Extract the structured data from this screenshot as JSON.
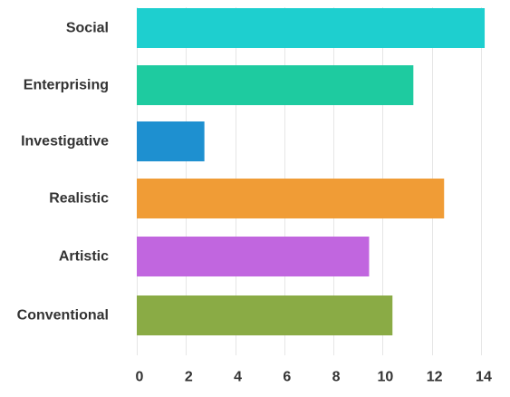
{
  "chart_data": {
    "type": "bar",
    "orientation": "horizontal",
    "categories": [
      "Social",
      "Enterprising",
      "Investigative",
      "Realistic",
      "Artistic",
      "Conventional"
    ],
    "values": [
      14.15,
      11.25,
      2.75,
      12.5,
      9.45,
      10.4
    ],
    "colors": [
      "#1ecfcf",
      "#1ecba0",
      "#1e90d0",
      "#f09c36",
      "#c166df",
      "#8aab45"
    ],
    "xlim": [
      0,
      14.4
    ],
    "xticks": [
      0,
      2,
      4,
      6,
      8,
      10,
      12,
      14
    ],
    "grid": true
  }
}
